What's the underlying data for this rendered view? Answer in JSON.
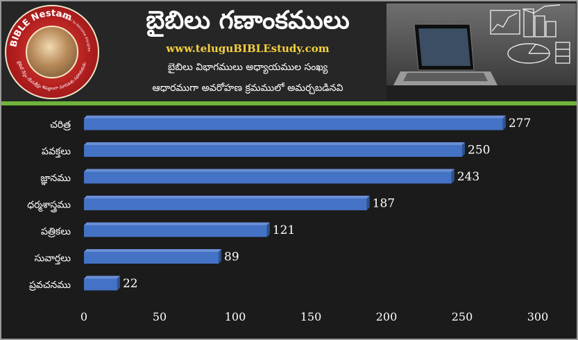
{
  "header": {
    "title": "బైబిలు గణాంకములు",
    "url": "www.teluguBIBLEstudy.com",
    "subtitle_line1": "బైబిలు విభాగములు అధ్యాయముల సంఖ్య",
    "subtitle_line2": "ఆధారముగా అవరోహణ క్రమములో అమర్చబడినవి",
    "logo_text": "BIBLE Nestam",
    "logo_tagline": "Helper to become disciples of JESUS CHRIST",
    "logo_telugu": "బైబిల్ నేస్తం యేసుక్రీస్తు శిష్యులుగా మారుటకు సహాయకుడు"
  },
  "colors": {
    "bar": "#4472c4",
    "bar_dark": "#2f528f",
    "accent_line": "#6fb33b",
    "background": "#1b1b1b"
  },
  "chart_data": {
    "type": "bar",
    "orientation": "horizontal",
    "categories": [
      "చరిత్ర",
      "పవక్తలు",
      "జ్ఞానము",
      "ధర్మశాస్త్రము",
      "పత్రికలు",
      "సువార్తలు",
      "ప్రవచనము"
    ],
    "values": [
      277,
      250,
      243,
      187,
      121,
      89,
      22
    ],
    "data_labels": [
      "277",
      "250",
      "243",
      "187",
      "121",
      "89",
      "22"
    ],
    "xlim": [
      0,
      300
    ],
    "xticks": [
      0,
      50,
      100,
      150,
      200,
      250,
      300
    ],
    "xtick_labels": [
      "0",
      "50",
      "100",
      "150",
      "200",
      "250",
      "300"
    ],
    "grid": false,
    "legend": "none"
  }
}
